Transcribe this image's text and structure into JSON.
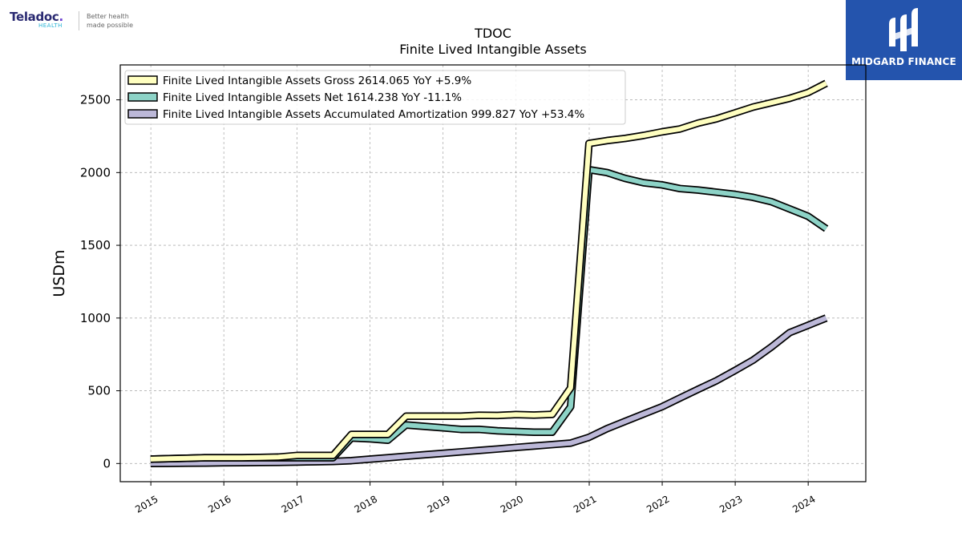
{
  "logo": {
    "word": "Teladoc",
    "sub": "HEALTH",
    "tagline1": "Better health",
    "tagline2": "made possible"
  },
  "brand": {
    "name": "MIDGARD FINANCE"
  },
  "chart_data": {
    "type": "line",
    "title": "TDOC",
    "subtitle": "Finite Lived Intangible Assets",
    "xlabel": "",
    "ylabel": "USDm",
    "ylim": [
      -125,
      2740
    ],
    "y_ticks": [
      0,
      500,
      1000,
      1500,
      2000,
      2500
    ],
    "x_ticks": [
      "2015",
      "2016",
      "2017",
      "2018",
      "2019",
      "2020",
      "2021",
      "2022",
      "2023",
      "2024"
    ],
    "grid": true,
    "legend_position": "top-left",
    "x": [
      "2014-12-31",
      "2015-03-31",
      "2015-06-30",
      "2015-09-30",
      "2015-12-31",
      "2016-03-31",
      "2016-06-30",
      "2016-09-30",
      "2016-12-31",
      "2017-03-31",
      "2017-06-30",
      "2017-09-30",
      "2017-12-31",
      "2018-03-31",
      "2018-06-30",
      "2018-09-30",
      "2018-12-31",
      "2019-03-31",
      "2019-06-30",
      "2019-09-30",
      "2019-12-31",
      "2020-03-31",
      "2020-06-30",
      "2020-09-30",
      "2020-12-31",
      "2021-03-31",
      "2021-06-30",
      "2021-09-30",
      "2021-12-31",
      "2022-03-31",
      "2022-06-30",
      "2022-09-30",
      "2022-12-31",
      "2023-03-31",
      "2023-06-30",
      "2023-09-30",
      "2023-12-31",
      "2024-03-31"
    ],
    "series": [
      {
        "name": "Finite Lived Intangible Assets Gross",
        "legend": "Finite Lived Intangible Assets Gross  2614.065 YoY +5.9%",
        "color": "#ffffc0",
        "values": [
          30,
          33,
          36,
          40,
          40,
          40,
          42,
          44,
          55,
          55,
          55,
          200,
          200,
          200,
          325,
          325,
          325,
          325,
          332,
          330,
          336,
          333,
          338,
          520,
          2200,
          2220,
          2235,
          2255,
          2280,
          2300,
          2340,
          2370,
          2410,
          2450,
          2480,
          2510,
          2550,
          2614.065
        ]
      },
      {
        "name": "Finite Lived Intangible Assets Net",
        "legend": "Finite Lived Intangible Assets Net  1614.238 YoY -11.1%",
        "color": "#8dd3c7",
        "values": [
          30,
          33,
          36,
          40,
          40,
          40,
          40,
          40,
          40,
          40,
          40,
          175,
          170,
          160,
          265,
          255,
          245,
          235,
          235,
          225,
          220,
          215,
          215,
          390,
          2020,
          2000,
          1960,
          1930,
          1915,
          1890,
          1880,
          1865,
          1850,
          1830,
          1800,
          1750,
          1700,
          1614.238
        ]
      },
      {
        "name": "Finite Lived Intangible Assets Accumulated Amortization",
        "legend": "Finite Lived Intangible Assets Accumulated Amortization  999.827 YoY +53.4%",
        "color": "#bcb8d8",
        "values": [
          0,
          1,
          2,
          3,
          5,
          6,
          7,
          8,
          10,
          12,
          14,
          20,
          30,
          40,
          50,
          60,
          70,
          80,
          90,
          100,
          110,
          120,
          130,
          140,
          180,
          240,
          290,
          340,
          390,
          450,
          510,
          570,
          640,
          710,
          800,
          900,
          950,
          999.827
        ]
      }
    ]
  }
}
